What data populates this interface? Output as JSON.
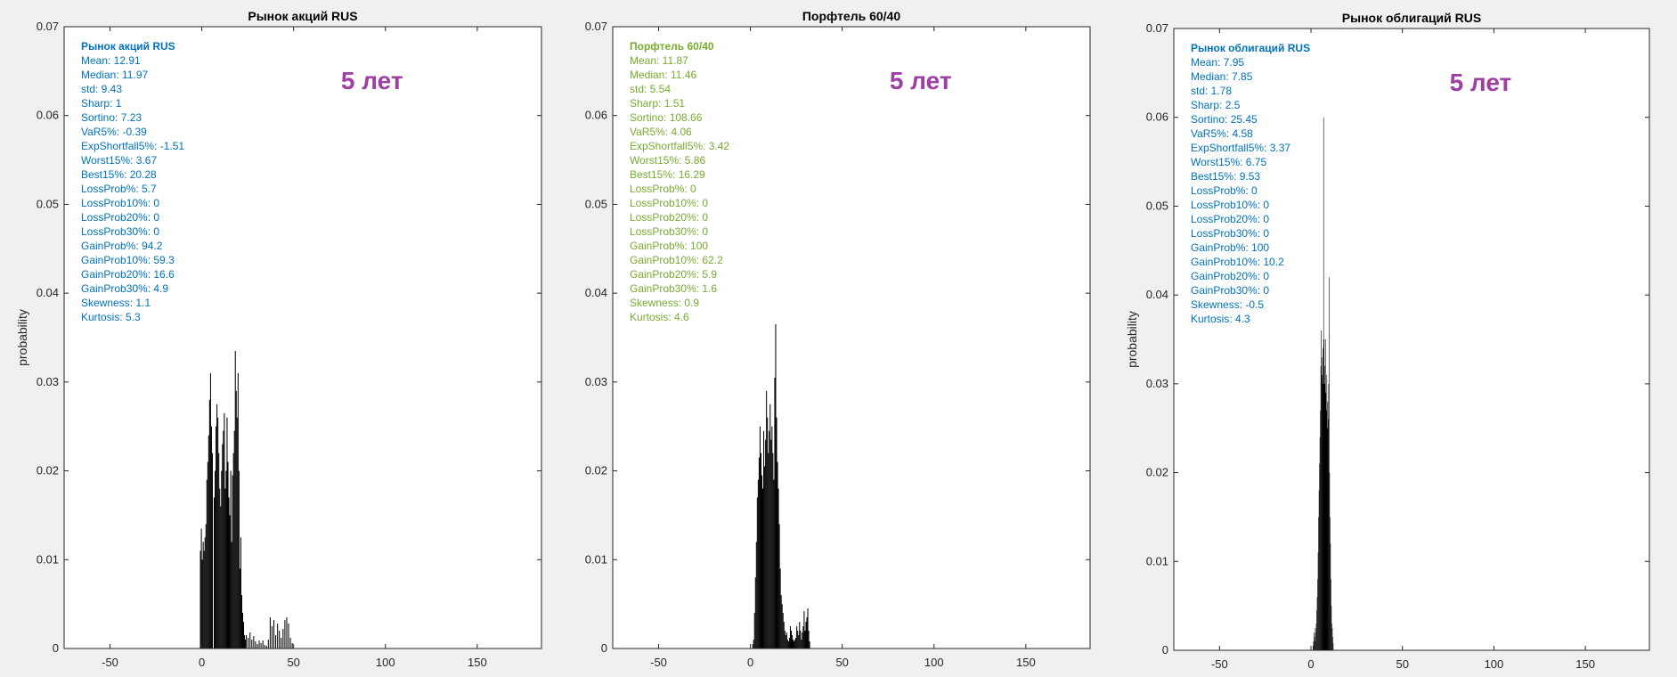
{
  "colors": {
    "background": "#f0f0f0",
    "axes_background": "#ffffff",
    "bars": "#000000",
    "stats_blue": "#0072bd",
    "stats_green": "#77ac30",
    "period_label": "#9e3fa3"
  },
  "chart_data": [
    {
      "type": "bar",
      "title": "Рынок акций RUS",
      "ylabel": "probability",
      "xlim": [
        -75,
        185
      ],
      "ylim": [
        0,
        0.07
      ],
      "xticks": [
        -50,
        0,
        50,
        100,
        150
      ],
      "yticks": [
        0,
        0.01,
        0.02,
        0.03,
        0.04,
        0.05,
        0.06,
        0.07
      ],
      "grid": false,
      "period_label": "5 лет",
      "stats_color": "blue",
      "stats_title": "Рынок акций RUS",
      "stats": [
        "Mean: 12.91",
        "Median: 11.97",
        "std: 9.43",
        "Sharp: 1",
        "Sortino: 7.23",
        "VaR5%: -0.39",
        "ExpShortfall5%: -1.51",
        "Worst15%: 3.67",
        "Best15%: 20.28",
        "LossProb%: 5.7",
        "LossProb10%: 0",
        "LossProb20%: 0",
        "LossProb30%: 0",
        "GainProb%: 94.2",
        "GainProb10%: 59.3",
        "GainProb20%: 16.6",
        "GainProb30%: 4.9",
        "Skewness: 1.1",
        "Kurtosis: 5.3"
      ],
      "histogram": {
        "bin_width": 0.5,
        "x": [
          -1.0,
          -0.5,
          0,
          0.5,
          1.0,
          1.5,
          2.0,
          2.5,
          3.0,
          3.5,
          4.0,
          4.5,
          5.0,
          5.5,
          6.0,
          6.5,
          7.0,
          7.5,
          8.0,
          8.5,
          9.0,
          9.5,
          10.0,
          10.5,
          11.0,
          11.5,
          12.0,
          12.5,
          13.0,
          13.5,
          14.0,
          14.5,
          15.0,
          15.5,
          16.0,
          16.5,
          17.0,
          17.5,
          18.0,
          18.5,
          19.0,
          19.5,
          20.0,
          20.5,
          21.0,
          21.5,
          22.0,
          22.5,
          23.0,
          23.5,
          24.0,
          25.0,
          26.0,
          27.0,
          28.0,
          29.0,
          30.0,
          31.0,
          32.0,
          33.0,
          34.0,
          35.0,
          36.0,
          37.0,
          38.0,
          39.0,
          40.0,
          41.0,
          42.0,
          43.0,
          44.0,
          45.0,
          46.0,
          47.0,
          48.0,
          49.0
        ],
        "values": [
          0.011,
          0.0135,
          0.01,
          0.012,
          0.011,
          0.0125,
          0.014,
          0.019,
          0.021,
          0.024,
          0.028,
          0.031,
          0.025,
          0.022,
          0.0,
          0.017,
          0.02,
          0.025,
          0.0275,
          0.026,
          0.022,
          0.018,
          0.016,
          0.02,
          0.023,
          0.0245,
          0.0265,
          0.018,
          0.02,
          0.026,
          0.021,
          0.017,
          0.015,
          0.02,
          0.012,
          0.0195,
          0.022,
          0.0245,
          0.0335,
          0.029,
          0.026,
          0.031,
          0.02,
          0.009,
          0.0125,
          0.006,
          0.004,
          0.003,
          0.0015,
          0.001,
          0.0015,
          0.0012,
          0.0018,
          0.001,
          0.0014,
          0.0008,
          0.0005,
          0.0009,
          0.0006,
          0.0009,
          0.0004,
          0.0003,
          0.001,
          0.0035,
          0.0025,
          0.0032,
          0.0015,
          0.0028,
          0.002,
          0.0012,
          0.0022,
          0.0032,
          0.0035,
          0.0028,
          0.0012,
          0.0006
        ]
      }
    },
    {
      "type": "bar",
      "title": "Порфтель 60/40",
      "ylabel": "",
      "xlim": [
        -75,
        185
      ],
      "ylim": [
        0,
        0.07
      ],
      "xticks": [
        -50,
        0,
        50,
        100,
        150
      ],
      "yticks": [
        0,
        0.01,
        0.02,
        0.03,
        0.04,
        0.05,
        0.06,
        0.07
      ],
      "grid": false,
      "period_label": "5 лет",
      "stats_color": "green",
      "stats_title": "Порфтель 60/40",
      "stats": [
        "Mean: 11.87",
        "Median: 11.46",
        "std: 5.54",
        "Sharp: 1.51",
        "Sortino: 108.66",
        "VaR5%: 4.06",
        "ExpShortfall5%: 3.42",
        "Worst15%: 5.86",
        "Best15%: 16.29",
        "LossProb%: 0",
        "LossProb10%: 0",
        "LossProb20%: 0",
        "LossProb30%: 0",
        "GainProb%: 100",
        "GainProb10%: 62.2",
        "GainProb20%: 5.9",
        "GainProb30%: 1.6",
        "Skewness: 0.9",
        "Kurtosis: 4.6"
      ],
      "histogram": {
        "bin_width": 0.5,
        "x": [
          1.0,
          1.5,
          2.0,
          2.5,
          3.0,
          3.5,
          4.0,
          4.5,
          5.0,
          5.5,
          6.0,
          6.5,
          7.0,
          7.5,
          8.0,
          8.5,
          9.0,
          9.5,
          10.0,
          10.5,
          11.0,
          11.5,
          12.0,
          12.5,
          13.0,
          13.5,
          14.0,
          14.5,
          15.0,
          15.5,
          16.0,
          16.5,
          17.0,
          17.5,
          18.0,
          18.5,
          19.0,
          19.5,
          20.0,
          20.5,
          21.0,
          21.5,
          22.0,
          22.5,
          23.0,
          23.5,
          24.0,
          24.5,
          25.0,
          25.5,
          26.0,
          26.5,
          27.0,
          27.5,
          28.0,
          28.5,
          29.0,
          29.5,
          30.0,
          30.5,
          31.0,
          31.5,
          32.0
        ],
        "values": [
          0.0005,
          0.001,
          0.004,
          0.008,
          0.012,
          0.017,
          0.019,
          0.0215,
          0.025,
          0.022,
          0.0195,
          0.018,
          0.0245,
          0.0205,
          0.0235,
          0.029,
          0.026,
          0.022,
          0.0245,
          0.0275,
          0.0235,
          0.025,
          0.022,
          0.019,
          0.0305,
          0.0365,
          0.026,
          0.021,
          0.018,
          0.014,
          0.009,
          0.006,
          0.005,
          0.004,
          0.003,
          0.002,
          0.0015,
          0.0018,
          0.001,
          0.0008,
          0.0012,
          0.0025,
          0.002,
          0.0015,
          0.001,
          0.0008,
          0.001,
          0.0012,
          0.0025,
          0.002,
          0.0015,
          0.003,
          0.002,
          0.001,
          0.0018,
          0.0025,
          0.0042,
          0.002,
          0.003,
          0.0035,
          0.0045,
          0.002,
          0.0008
        ]
      }
    },
    {
      "type": "bar",
      "title": "Рынок облигаций RUS",
      "ylabel": "probability",
      "xlim": [
        -75,
        185
      ],
      "ylim": [
        0,
        0.07
      ],
      "xticks": [
        -50,
        0,
        50,
        100,
        150
      ],
      "yticks": [
        0,
        0.01,
        0.02,
        0.03,
        0.04,
        0.05,
        0.06,
        0.07
      ],
      "grid": false,
      "period_label": "5 лет",
      "stats_color": "blue",
      "stats_title": "Рынок облигаций RUS",
      "stats": [
        "Mean: 7.95",
        "Median: 7.85",
        "std: 1.78",
        "Sharp: 2.5",
        "Sortino: 25.45",
        "VaR5%: 4.58",
        "ExpShortfall5%: 3.37",
        "Worst15%: 6.75",
        "Best15%: 9.53",
        "LossProb%: 0",
        "LossProb10%: 0",
        "LossProb20%: 0",
        "LossProb30%: 0",
        "GainProb%: 100",
        "GainProb10%: 10.2",
        "GainProb20%: 0",
        "GainProb30%: 0",
        "Skewness: -0.5",
        "Kurtosis: 4.3"
      ],
      "histogram": {
        "bin_width": 0.25,
        "x": [
          1.0,
          1.25,
          1.5,
          1.75,
          2.0,
          2.25,
          2.5,
          2.75,
          3.0,
          3.25,
          3.5,
          3.75,
          4.0,
          4.25,
          4.5,
          4.75,
          5.0,
          5.25,
          5.5,
          5.75,
          6.0,
          6.25,
          6.5,
          6.75,
          7.0,
          7.25,
          7.5,
          7.75,
          8.0,
          8.25,
          8.5,
          8.75,
          9.0,
          9.25,
          9.5,
          9.75,
          10.0,
          10.25,
          10.5,
          10.75,
          11.0,
          11.25,
          11.5,
          11.75,
          12.0
        ],
        "values": [
          0.0005,
          0.001,
          0.002,
          0.0015,
          0.001,
          0.0025,
          0.002,
          0.003,
          0.0045,
          0.006,
          0.008,
          0.011,
          0.015,
          0.018,
          0.021,
          0.024,
          0.027,
          0.032,
          0.036,
          0.033,
          0.031,
          0.03,
          0.034,
          0.06,
          0.035,
          0.032,
          0.03,
          0.035,
          0.029,
          0.027,
          0.031,
          0.025,
          0.028,
          0.026,
          0.03,
          0.042,
          0.02,
          0.015,
          0.012,
          0.008,
          0.005,
          0.003,
          0.0025,
          0.0015,
          0.0008
        ]
      }
    }
  ]
}
